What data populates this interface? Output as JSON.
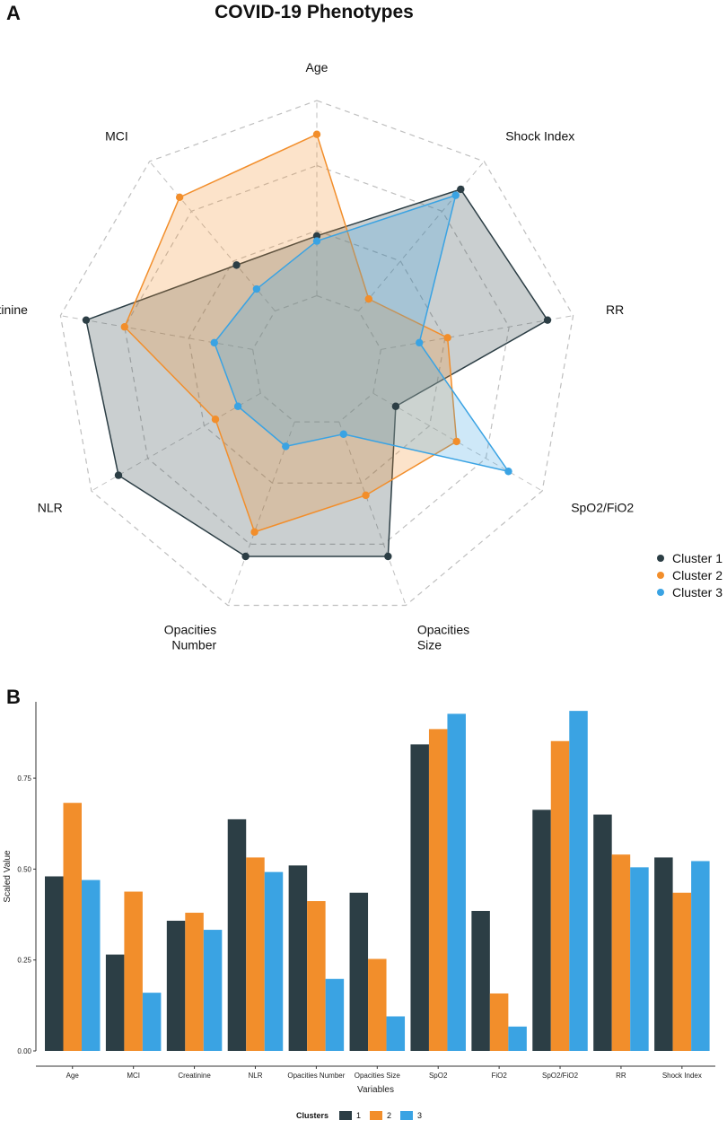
{
  "panel_a": {
    "letter": "A"
  },
  "panel_b": {
    "letter": "B"
  },
  "colors": {
    "cluster1": "#2c3e45",
    "cluster2": "#f28e2b",
    "cluster3": "#3aa3e3",
    "grid": "#bfbfbf"
  },
  "chart_data": [
    {
      "type": "radar",
      "title": "COVID-19 Phenotypes",
      "axes": [
        "Age",
        "Shock Index",
        "RR",
        "SpO2/FiO2",
        "Opacities\nSize",
        "Opacities\nNumber",
        "NLR",
        "Creatinine",
        "MCI"
      ],
      "rlim": [
        0,
        1
      ],
      "rings": 4,
      "legend": {
        "position": "right",
        "entries": [
          "Cluster 1",
          "Cluster 2",
          "Cluster 3"
        ]
      },
      "series": [
        {
          "name": "Cluster 1",
          "values": [
            0.48,
            0.86,
            0.9,
            0.35,
            0.8,
            0.8,
            0.88,
            0.9,
            0.48
          ]
        },
        {
          "name": "Cluster 2",
          "values": [
            0.87,
            0.31,
            0.51,
            0.62,
            0.55,
            0.7,
            0.45,
            0.75,
            0.82
          ]
        },
        {
          "name": "Cluster 3",
          "values": [
            0.46,
            0.83,
            0.4,
            0.85,
            0.3,
            0.35,
            0.35,
            0.4,
            0.36
          ]
        }
      ]
    },
    {
      "type": "bar",
      "title": "",
      "xlabel": "Variables",
      "ylabel": "Scaled Value",
      "ylim": [
        0,
        0.96
      ],
      "yticks": [
        "0.00",
        "0.25",
        "0.50",
        "0.75"
      ],
      "categories": [
        "Age",
        "MCI",
        "Creatinine",
        "NLR",
        "Opacities Number",
        "Opacities Size",
        "SpO2",
        "FiO2",
        "SpO2/FiO2",
        "RR",
        "Shock Index"
      ],
      "legend": {
        "position": "bottom",
        "title": "Clusters",
        "entries": [
          "1",
          "2",
          "3"
        ]
      },
      "series": [
        {
          "name": "1",
          "values": [
            0.48,
            0.265,
            0.358,
            0.637,
            0.51,
            0.435,
            0.843,
            0.385,
            0.663,
            0.65,
            0.532
          ]
        },
        {
          "name": "2",
          "values": [
            0.682,
            0.438,
            0.38,
            0.532,
            0.412,
            0.253,
            0.885,
            0.158,
            0.852,
            0.54,
            0.435
          ]
        },
        {
          "name": "3",
          "values": [
            0.47,
            0.16,
            0.333,
            0.492,
            0.198,
            0.095,
            0.927,
            0.067,
            0.935,
            0.505,
            0.522
          ]
        }
      ]
    }
  ]
}
